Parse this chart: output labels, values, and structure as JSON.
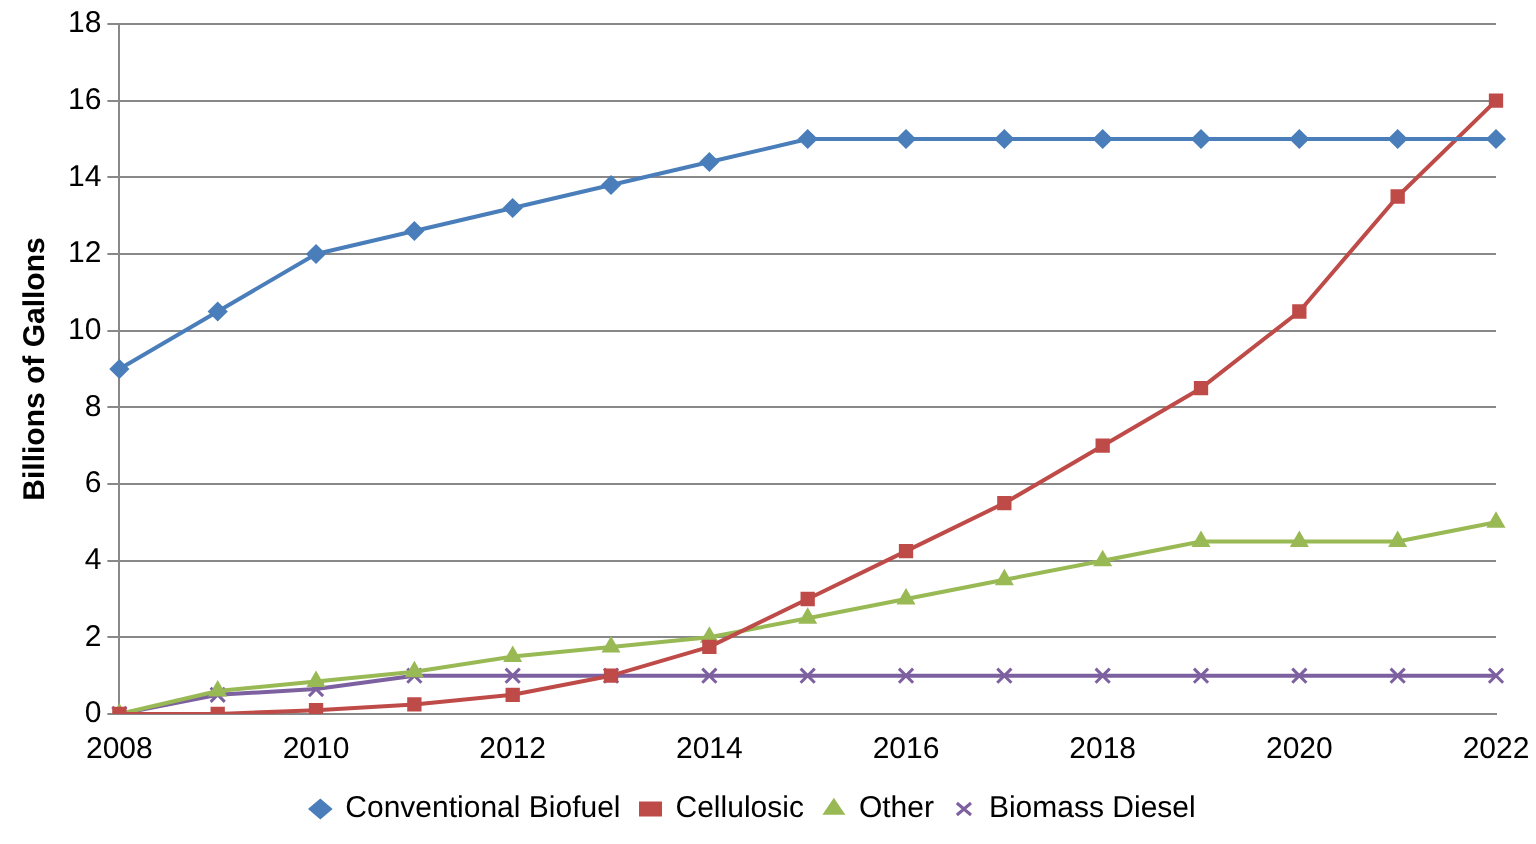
{
  "chart_data": {
    "type": "line",
    "ylabel": "Billions of Gallons",
    "categories": [
      "2008",
      null,
      "2010",
      null,
      "2012",
      null,
      "2014",
      null,
      "2016",
      null,
      "2018",
      null,
      "2020",
      null,
      "2022"
    ],
    "ylim": [
      0,
      18
    ],
    "yticks": [
      0,
      2,
      4,
      6,
      8,
      10,
      12,
      14,
      16,
      18
    ],
    "grid": "y",
    "legend": "bottom",
    "line_style": "solid",
    "series": [
      {
        "name": "Conventional Biofuel",
        "color": "#4a7ebb",
        "marker": "diamond",
        "values": [
          9,
          10.5,
          12,
          12.6,
          13.2,
          13.8,
          14.4,
          15,
          15,
          15,
          15,
          15,
          15,
          15,
          15
        ]
      },
      {
        "name": "Cellulosic",
        "color": "#be4b48",
        "marker": "square",
        "values": [
          0,
          0,
          0.1,
          0.25,
          0.5,
          1,
          1.75,
          3,
          4.25,
          5.5,
          7,
          8.5,
          10.5,
          13.5,
          16
        ]
      },
      {
        "name": "Other",
        "color": "#98b954",
        "marker": "triangle",
        "values": [
          0,
          0.6,
          0.85,
          1.1,
          1.5,
          1.75,
          2,
          2.5,
          3,
          3.5,
          4,
          4.5,
          4.5,
          4.5,
          5
        ]
      },
      {
        "name": "Biomass Diesel",
        "color": "#7d60a0",
        "marker": "cross",
        "values": [
          0,
          0.5,
          0.65,
          1,
          1,
          1,
          1,
          1,
          1,
          1,
          1,
          1,
          1,
          1,
          1
        ]
      }
    ]
  }
}
